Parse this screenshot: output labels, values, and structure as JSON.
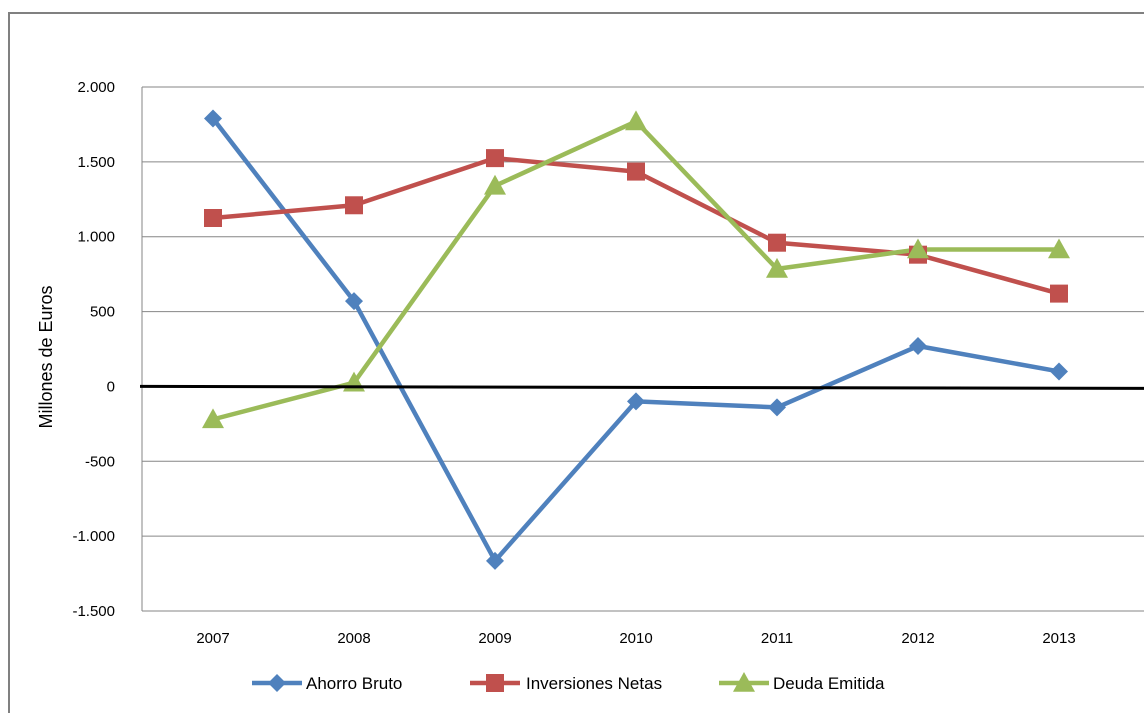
{
  "chart_data": {
    "type": "line",
    "title": "",
    "xlabel": "",
    "ylabel": "Millones de Euros",
    "categories": [
      "2007",
      "2008",
      "2009",
      "2010",
      "2011",
      "2012",
      "2013"
    ],
    "ylim": [
      -1500,
      2000
    ],
    "yticks": [
      -1500,
      -1000,
      -500,
      0,
      500,
      1000,
      1500,
      2000
    ],
    "ytick_labels": [
      "-1.500",
      "-1.000",
      "-500",
      "0",
      "500",
      "1.000",
      "1.500",
      "2.000"
    ],
    "grid": true,
    "legend_position": "bottom",
    "series": [
      {
        "name": "Ahorro Bruto",
        "marker": "diamond",
        "color": "#4f81bd",
        "values": [
          1790,
          570,
          -1165,
          -100,
          -140,
          270,
          100
        ]
      },
      {
        "name": "Inversiones Netas",
        "marker": "square",
        "color": "#c0504d",
        "values": [
          1125,
          1210,
          1525,
          1435,
          960,
          880,
          620
        ]
      },
      {
        "name": "Deuda Emitida",
        "marker": "triangle",
        "color": "#9bbb59",
        "values": [
          -220,
          25,
          1340,
          1770,
          785,
          915,
          915
        ]
      }
    ]
  }
}
